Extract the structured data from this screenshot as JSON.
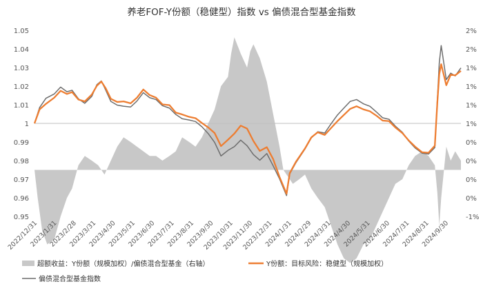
{
  "chart_data": {
    "type": "line",
    "title": "养老FOF-Y份额（稳健型）指数  vs  偏债混合型基金指数",
    "left_axis": {
      "ylim": [
        0.95,
        1.05
      ],
      "ticks": [
        "0.95",
        "0.96",
        "0.97",
        "0.98",
        "0.99",
        "1",
        "1.01",
        "1.02",
        "1.03",
        "1.04",
        "1.05"
      ]
    },
    "right_axis": {
      "ylim": [
        -1,
        3
      ],
      "ticks": [
        "-1%",
        "0%",
        "0%",
        "0%",
        "0%",
        "1%",
        "1%",
        "1%",
        "1%",
        "2%",
        "2%"
      ]
    },
    "x_ticks": [
      "2022/12/31",
      "2023/1/31",
      "2023/2/28",
      "2023/3/31",
      "2023/4/30",
      "2023/5/31",
      "2023/6/30",
      "2023/7/31",
      "2023/8/31",
      "2023/9/30",
      "2023/10/31",
      "2023/11/30",
      "2023/12/31",
      "2024/1/31",
      "2024/2/29",
      "2024/3/31",
      "2024/4/30",
      "2024/5/31",
      "2024/6/30",
      "2024/7/31",
      "2024/8/31",
      "2024/9/30"
    ],
    "x_range": [
      "2022-12-31",
      "2024-10-31"
    ],
    "legend": [
      {
        "label": "超额收益：Y份额（规模加权）/偏债混合型基金（右轴）",
        "color": "#c8c8c8",
        "kind": "area"
      },
      {
        "label": "Y份额：目标风险：稳健型（规模加权）",
        "color": "#ed7d31",
        "kind": "line"
      },
      {
        "label": "偏债混合型基金指数",
        "color": "#6d6d6d",
        "kind": "line"
      }
    ],
    "series": [
      {
        "name": "Y份额：目标风险：稳健型（规模加权）",
        "axis": "left",
        "color": "#ed7d31",
        "points": [
          [
            "2022-12-31",
            1.0
          ],
          [
            "2023-01-08",
            1.0075
          ],
          [
            "2023-01-18",
            1.0105
          ],
          [
            "2023-01-31",
            1.0138
          ],
          [
            "2023-02-10",
            1.0175
          ],
          [
            "2023-02-20",
            1.0158
          ],
          [
            "2023-02-28",
            1.0168
          ],
          [
            "2023-03-10",
            1.0128
          ],
          [
            "2023-03-20",
            1.0118
          ],
          [
            "2023-03-31",
            1.0155
          ],
          [
            "2023-04-08",
            1.0202
          ],
          [
            "2023-04-15",
            1.0225
          ],
          [
            "2023-04-22",
            1.0188
          ],
          [
            "2023-04-30",
            1.0132
          ],
          [
            "2023-05-10",
            1.0115
          ],
          [
            "2023-05-20",
            1.0118
          ],
          [
            "2023-05-31",
            1.0108
          ],
          [
            "2023-06-10",
            1.0138
          ],
          [
            "2023-06-20",
            1.0182
          ],
          [
            "2023-06-30",
            1.0152
          ],
          [
            "2023-07-10",
            1.0138
          ],
          [
            "2023-07-20",
            1.0102
          ],
          [
            "2023-07-31",
            1.0098
          ],
          [
            "2023-08-10",
            1.0058
          ],
          [
            "2023-08-20",
            1.0048
          ],
          [
            "2023-08-31",
            1.0035
          ],
          [
            "2023-09-10",
            1.0028
          ],
          [
            "2023-09-20",
            1.0002
          ],
          [
            "2023-09-30",
            0.9978
          ],
          [
            "2023-10-10",
            0.9948
          ],
          [
            "2023-10-20",
            0.9878
          ],
          [
            "2023-10-31",
            0.9912
          ],
          [
            "2023-11-10",
            0.9945
          ],
          [
            "2023-11-20",
            0.9988
          ],
          [
            "2023-11-30",
            0.9972
          ],
          [
            "2023-12-10",
            0.9905
          ],
          [
            "2023-12-20",
            0.9852
          ],
          [
            "2023-12-31",
            0.9872
          ],
          [
            "2024-01-10",
            0.9808
          ],
          [
            "2024-01-20",
            0.9712
          ],
          [
            "2024-01-31",
            0.9622
          ],
          [
            "2024-02-05",
            0.9732
          ],
          [
            "2024-02-15",
            0.9795
          ],
          [
            "2024-02-29",
            0.9865
          ],
          [
            "2024-03-10",
            0.9925
          ],
          [
            "2024-03-20",
            0.9952
          ],
          [
            "2024-03-31",
            0.9938
          ],
          [
            "2024-04-10",
            0.9975
          ],
          [
            "2024-04-20",
            1.0012
          ],
          [
            "2024-04-30",
            1.0045
          ],
          [
            "2024-05-10",
            1.0078
          ],
          [
            "2024-05-20",
            1.0092
          ],
          [
            "2024-05-31",
            1.0075
          ],
          [
            "2024-06-10",
            1.0065
          ],
          [
            "2024-06-20",
            1.0042
          ],
          [
            "2024-06-30",
            1.0015
          ],
          [
            "2024-07-10",
            1.0012
          ],
          [
            "2024-07-20",
            0.9978
          ],
          [
            "2024-07-31",
            0.9948
          ],
          [
            "2024-08-10",
            0.9908
          ],
          [
            "2024-08-20",
            0.9875
          ],
          [
            "2024-08-31",
            0.9845
          ],
          [
            "2024-09-10",
            0.9842
          ],
          [
            "2024-09-20",
            0.988
          ],
          [
            "2024-09-24",
            1.0115
          ],
          [
            "2024-09-27",
            1.0265
          ],
          [
            "2024-09-30",
            1.0318
          ],
          [
            "2024-10-08",
            1.0205
          ],
          [
            "2024-10-15",
            1.0262
          ],
          [
            "2024-10-22",
            1.0258
          ],
          [
            "2024-10-31",
            1.0282
          ]
        ]
      },
      {
        "name": "偏债混合型基金指数",
        "axis": "left",
        "color": "#6d6d6d",
        "points": [
          [
            "2022-12-31",
            1.0
          ],
          [
            "2023-01-08",
            1.0085
          ],
          [
            "2023-01-18",
            1.0135
          ],
          [
            "2023-01-31",
            1.0158
          ],
          [
            "2023-02-10",
            1.0195
          ],
          [
            "2023-02-20",
            1.017
          ],
          [
            "2023-02-28",
            1.0178
          ],
          [
            "2023-03-10",
            1.0132
          ],
          [
            "2023-03-20",
            1.0108
          ],
          [
            "2023-03-31",
            1.0145
          ],
          [
            "2023-04-08",
            1.0208
          ],
          [
            "2023-04-15",
            1.0228
          ],
          [
            "2023-04-22",
            1.0178
          ],
          [
            "2023-04-30",
            1.0118
          ],
          [
            "2023-05-10",
            1.0098
          ],
          [
            "2023-05-20",
            1.0092
          ],
          [
            "2023-05-31",
            1.0088
          ],
          [
            "2023-06-10",
            1.012
          ],
          [
            "2023-06-20",
            1.0165
          ],
          [
            "2023-06-30",
            1.0138
          ],
          [
            "2023-07-10",
            1.0128
          ],
          [
            "2023-07-20",
            1.0095
          ],
          [
            "2023-07-31",
            1.0082
          ],
          [
            "2023-08-10",
            1.0048
          ],
          [
            "2023-08-20",
            1.0025
          ],
          [
            "2023-08-31",
            1.0018
          ],
          [
            "2023-09-10",
            1.001
          ],
          [
            "2023-09-20",
            0.9982
          ],
          [
            "2023-09-30",
            0.9945
          ],
          [
            "2023-10-10",
            0.9898
          ],
          [
            "2023-10-20",
            0.9825
          ],
          [
            "2023-10-31",
            0.9855
          ],
          [
            "2023-11-10",
            0.9875
          ],
          [
            "2023-11-20",
            0.991
          ],
          [
            "2023-11-30",
            0.988
          ],
          [
            "2023-12-10",
            0.9832
          ],
          [
            "2023-12-20",
            0.9802
          ],
          [
            "2023-12-31",
            0.9838
          ],
          [
            "2024-01-10",
            0.9772
          ],
          [
            "2024-01-20",
            0.9702
          ],
          [
            "2024-01-31",
            0.9612
          ],
          [
            "2024-02-05",
            0.9728
          ],
          [
            "2024-02-15",
            0.979
          ],
          [
            "2024-02-29",
            0.9862
          ],
          [
            "2024-03-10",
            0.9922
          ],
          [
            "2024-03-20",
            0.9955
          ],
          [
            "2024-03-31",
            0.9948
          ],
          [
            "2024-04-10",
            0.9998
          ],
          [
            "2024-04-20",
            1.0045
          ],
          [
            "2024-04-30",
            1.0082
          ],
          [
            "2024-05-10",
            1.0118
          ],
          [
            "2024-05-20",
            1.0128
          ],
          [
            "2024-05-31",
            1.0105
          ],
          [
            "2024-06-10",
            1.0092
          ],
          [
            "2024-06-20",
            1.0062
          ],
          [
            "2024-06-30",
            1.003
          ],
          [
            "2024-07-10",
            1.0022
          ],
          [
            "2024-07-20",
            0.9985
          ],
          [
            "2024-07-31",
            0.9952
          ],
          [
            "2024-08-10",
            0.9905
          ],
          [
            "2024-08-20",
            0.9868
          ],
          [
            "2024-08-31",
            0.984
          ],
          [
            "2024-09-10",
            0.9835
          ],
          [
            "2024-09-20",
            0.987
          ],
          [
            "2024-09-24",
            1.013
          ],
          [
            "2024-09-27",
            1.0325
          ],
          [
            "2024-09-30",
            1.0418
          ],
          [
            "2024-10-08",
            1.0235
          ],
          [
            "2024-10-15",
            1.027
          ],
          [
            "2024-10-22",
            1.0255
          ],
          [
            "2024-10-31",
            1.0298
          ]
        ]
      }
    ],
    "excess_area": {
      "name": "超额收益：Y份额（规模加权）/偏债混合型基金（右轴）",
      "axis": "right",
      "color": "#c8c8c8",
      "points": [
        [
          "2022-12-31",
          0
        ],
        [
          "2023-01-05",
          -0.6
        ],
        [
          "2023-01-12",
          -1.3
        ],
        [
          "2023-01-20",
          -1.6
        ],
        [
          "2023-01-31",
          -1.5
        ],
        [
          "2023-02-10",
          -1.0
        ],
        [
          "2023-02-20",
          -0.6
        ],
        [
          "2023-02-28",
          -0.4
        ],
        [
          "2023-03-10",
          0.1
        ],
        [
          "2023-03-20",
          0.3
        ],
        [
          "2023-03-31",
          0.2
        ],
        [
          "2023-04-10",
          0.1
        ],
        [
          "2023-04-20",
          -0.1
        ],
        [
          "2023-04-30",
          0.2
        ],
        [
          "2023-05-10",
          0.5
        ],
        [
          "2023-05-20",
          0.7
        ],
        [
          "2023-05-31",
          0.6
        ],
        [
          "2023-06-10",
          0.5
        ],
        [
          "2023-06-20",
          0.4
        ],
        [
          "2023-06-30",
          0.3
        ],
        [
          "2023-07-10",
          0.3
        ],
        [
          "2023-07-20",
          0.2
        ],
        [
          "2023-07-31",
          0.3
        ],
        [
          "2023-08-10",
          0.4
        ],
        [
          "2023-08-20",
          0.7
        ],
        [
          "2023-08-31",
          0.6
        ],
        [
          "2023-09-10",
          0.5
        ],
        [
          "2023-09-20",
          0.7
        ],
        [
          "2023-09-30",
          1.0
        ],
        [
          "2023-10-10",
          1.3
        ],
        [
          "2023-10-20",
          1.8
        ],
        [
          "2023-10-31",
          2.0
        ],
        [
          "2023-11-05",
          2.5
        ],
        [
          "2023-11-10",
          2.85
        ],
        [
          "2023-11-20",
          2.5
        ],
        [
          "2023-11-30",
          2.2
        ],
        [
          "2023-12-05",
          2.55
        ],
        [
          "2023-12-10",
          2.7
        ],
        [
          "2023-12-20",
          2.4
        ],
        [
          "2023-12-31",
          1.9
        ],
        [
          "2024-01-10",
          1.2
        ],
        [
          "2024-01-20",
          0.5
        ],
        [
          "2024-01-26",
          0.0
        ],
        [
          "2024-01-31",
          -0.1
        ],
        [
          "2024-02-10",
          -0.3
        ],
        [
          "2024-02-20",
          -0.2
        ],
        [
          "2024-02-29",
          -0.1
        ],
        [
          "2024-03-10",
          -0.4
        ],
        [
          "2024-03-20",
          -0.6
        ],
        [
          "2024-03-31",
          -0.8
        ],
        [
          "2024-04-10",
          -1.2
        ],
        [
          "2024-04-20",
          -1.6
        ],
        [
          "2024-04-30",
          -1.9
        ],
        [
          "2024-05-10",
          -2.0
        ],
        [
          "2024-05-20",
          -1.9
        ],
        [
          "2024-05-31",
          -1.6
        ],
        [
          "2024-06-10",
          -1.5
        ],
        [
          "2024-06-20",
          -1.2
        ],
        [
          "2024-06-30",
          -0.9
        ],
        [
          "2024-07-10",
          -0.6
        ],
        [
          "2024-07-20",
          -0.3
        ],
        [
          "2024-07-31",
          -0.2
        ],
        [
          "2024-08-10",
          0.1
        ],
        [
          "2024-08-20",
          0.3
        ],
        [
          "2024-08-31",
          0.4
        ],
        [
          "2024-09-10",
          0.3
        ],
        [
          "2024-09-20",
          0.1
        ],
        [
          "2024-09-24",
          -0.5
        ],
        [
          "2024-09-27",
          -1.2
        ],
        [
          "2024-09-30",
          -0.6
        ],
        [
          "2024-10-08",
          0.5
        ],
        [
          "2024-10-15",
          0.2
        ],
        [
          "2024-10-22",
          0.4
        ],
        [
          "2024-10-31",
          0.2
        ]
      ]
    }
  }
}
